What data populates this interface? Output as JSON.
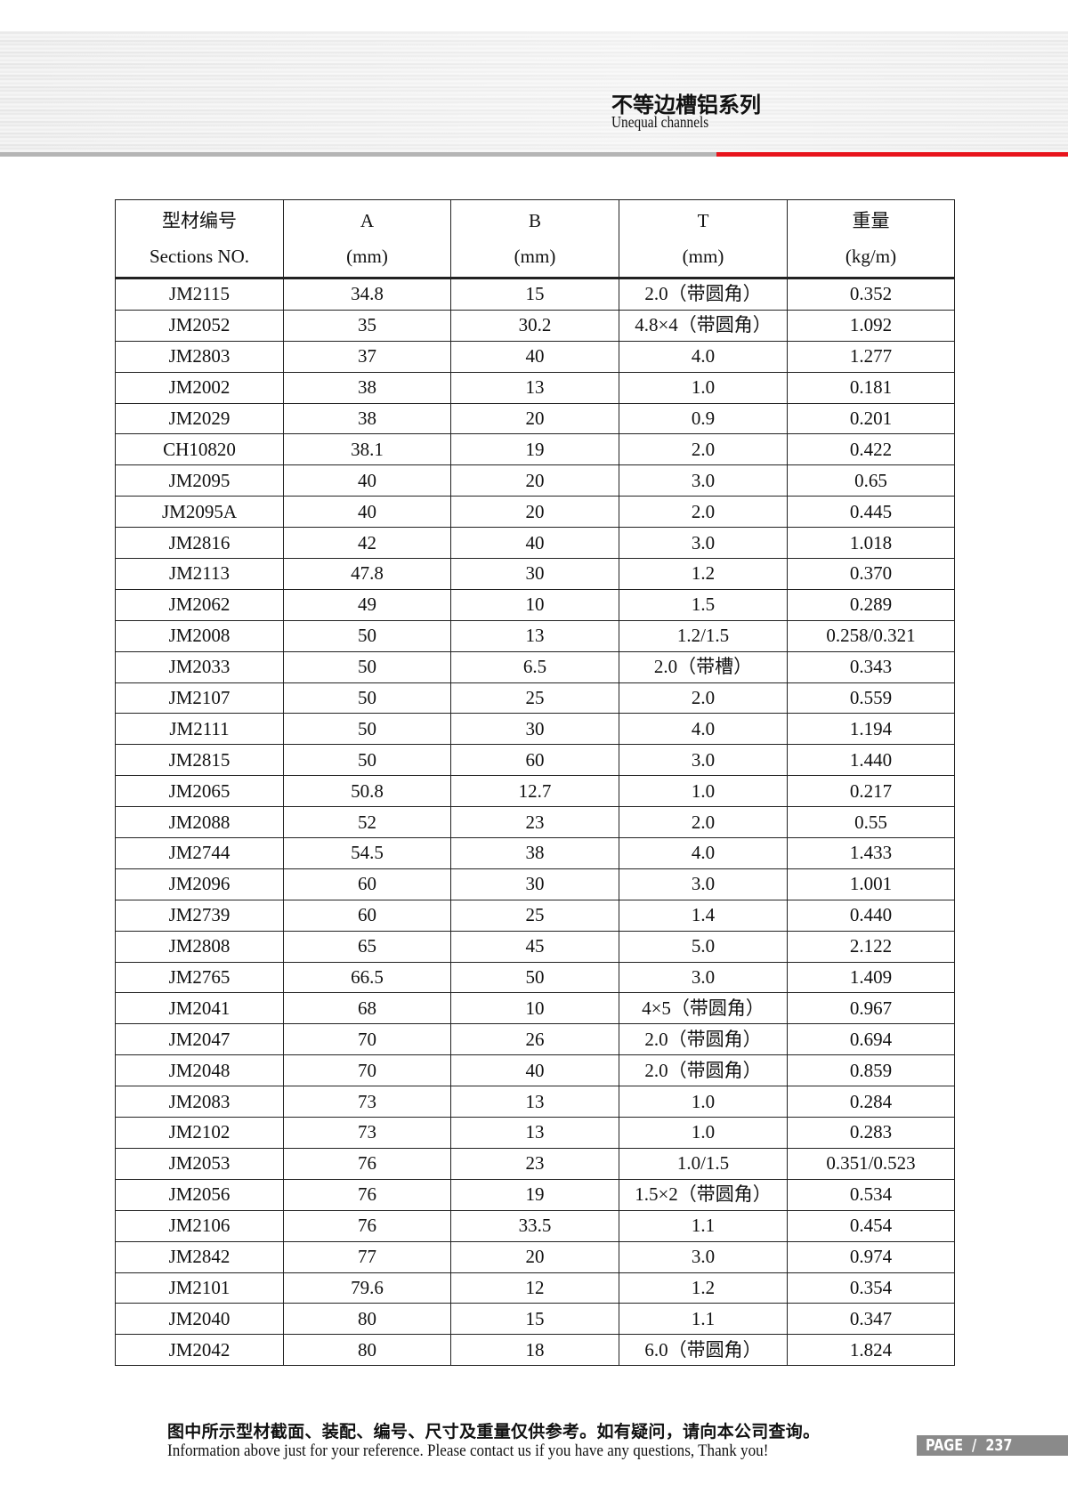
{
  "header": {
    "title_cn": "不等边槽铝系列",
    "title_en": "Unequal channels",
    "accent_color": "#e8141c"
  },
  "table": {
    "columns": [
      {
        "cn": "型材编号",
        "en": "Sections NO."
      },
      {
        "cn": "A",
        "en": "(mm)"
      },
      {
        "cn": "B",
        "en": "(mm)"
      },
      {
        "cn": "T",
        "en": "(mm)"
      },
      {
        "cn": "重量",
        "en": "(kg/m)"
      }
    ],
    "rows": [
      [
        "JM2115",
        "34.8",
        "15",
        "2.0（带圆角）",
        "0.352"
      ],
      [
        "JM2052",
        "35",
        "30.2",
        "4.8×4（带圆角）",
        "1.092"
      ],
      [
        "JM2803",
        "37",
        "40",
        "4.0",
        "1.277"
      ],
      [
        "JM2002",
        "38",
        "13",
        "1.0",
        "0.181"
      ],
      [
        "JM2029",
        "38",
        "20",
        "0.9",
        "0.201"
      ],
      [
        "CH10820",
        "38.1",
        "19",
        "2.0",
        "0.422"
      ],
      [
        "JM2095",
        "40",
        "20",
        "3.0",
        "0.65"
      ],
      [
        "JM2095A",
        "40",
        "20",
        "2.0",
        "0.445"
      ],
      [
        "JM2816",
        "42",
        "40",
        "3.0",
        "1.018"
      ],
      [
        "JM2113",
        "47.8",
        "30",
        "1.2",
        "0.370"
      ],
      [
        "JM2062",
        "49",
        "10",
        "1.5",
        "0.289"
      ],
      [
        "JM2008",
        "50",
        "13",
        "1.2/1.5",
        "0.258/0.321"
      ],
      [
        "JM2033",
        "50",
        "6.5",
        "2.0（带槽）",
        "0.343"
      ],
      [
        "JM2107",
        "50",
        "25",
        "2.0",
        "0.559"
      ],
      [
        "JM2111",
        "50",
        "30",
        "4.0",
        "1.194"
      ],
      [
        "JM2815",
        "50",
        "60",
        "3.0",
        "1.440"
      ],
      [
        "JM2065",
        "50.8",
        "12.7",
        "1.0",
        "0.217"
      ],
      [
        "JM2088",
        "52",
        "23",
        "2.0",
        "0.55"
      ],
      [
        "JM2744",
        "54.5",
        "38",
        "4.0",
        "1.433"
      ],
      [
        "JM2096",
        "60",
        "30",
        "3.0",
        "1.001"
      ],
      [
        "JM2739",
        "60",
        "25",
        "1.4",
        "0.440"
      ],
      [
        "JM2808",
        "65",
        "45",
        "5.0",
        "2.122"
      ],
      [
        "JM2765",
        "66.5",
        "50",
        "3.0",
        "1.409"
      ],
      [
        "JM2041",
        "68",
        "10",
        "4×5（带圆角）",
        "0.967"
      ],
      [
        "JM2047",
        "70",
        "26",
        "2.0（带圆角）",
        "0.694"
      ],
      [
        "JM2048",
        "70",
        "40",
        "2.0（带圆角）",
        "0.859"
      ],
      [
        "JM2083",
        "73",
        "13",
        "1.0",
        "0.284"
      ],
      [
        "JM2102",
        "73",
        "13",
        "1.0",
        "0.283"
      ],
      [
        "JM2053",
        "76",
        "23",
        "1.0/1.5",
        "0.351/0.523"
      ],
      [
        "JM2056",
        "76",
        "19",
        "1.5×2（带圆角）",
        "0.534"
      ],
      [
        "JM2106",
        "76",
        "33.5",
        "1.1",
        "0.454"
      ],
      [
        "JM2842",
        "77",
        "20",
        "3.0",
        "0.974"
      ],
      [
        "JM2101",
        "79.6",
        "12",
        "1.2",
        "0.354"
      ],
      [
        "JM2040",
        "80",
        "15",
        "1.1",
        "0.347"
      ],
      [
        "JM2042",
        "80",
        "18",
        "6.0（带圆角）",
        "1.824"
      ]
    ]
  },
  "footer": {
    "note_cn": "图中所示型材截面、装配、编号、尺寸及重量仅供参考。如有疑问，请向本公司查询。",
    "note_en": "Information above just for your reference. Please contact us if you have any questions, Thank you!",
    "page_label": "PAGE  /  237"
  }
}
